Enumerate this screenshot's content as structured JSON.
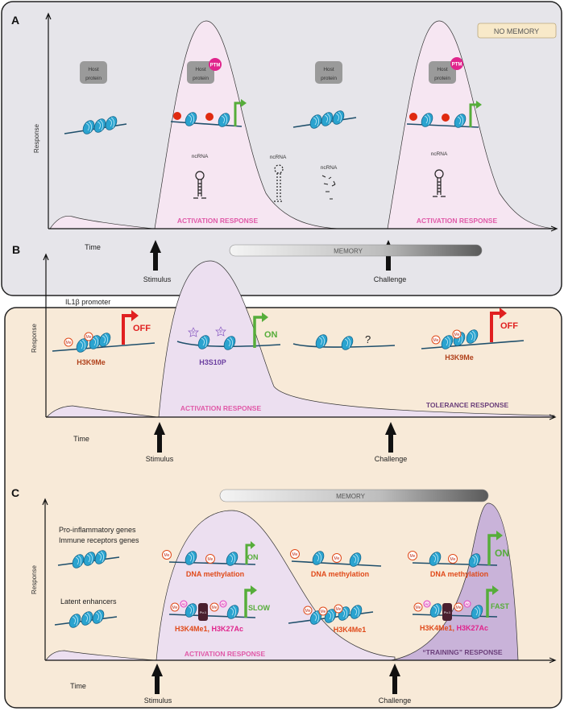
{
  "common": {
    "response_label": "Response",
    "time_label": "Time",
    "stimulus_label": "Stimulus",
    "challenge_label": "Challenge",
    "activation_label": "ACTIVATION RESPONSE",
    "me": "Me",
    "ac": "Ac",
    "p": "P",
    "pu1": "Pu.1"
  },
  "panel_a": {
    "letter": "A",
    "badge": "NO MEMORY",
    "host_protein_line1": "Host",
    "host_protein_line2": "protein",
    "ptm": "PTM",
    "ncrna": "ncRNA"
  },
  "panel_b": {
    "letter": "B",
    "memory": "MEMORY",
    "promoter": "IL1β promoter",
    "h3k9me": "H3K9Me",
    "h3s10p": "H3S10P",
    "off": "OFF",
    "on": "ON",
    "question": "?",
    "tolerance": "TOLERANCE RESPONSE"
  },
  "panel_c": {
    "letter": "C",
    "memory": "MEMORY",
    "genes_line1": "Pro-inflammatory genes",
    "genes_line2": "Immune receptors genes",
    "enhancers": "Latent enhancers",
    "dna_methylation": "DNA methylation",
    "h3k4me1": "H3K4Me1",
    "h3k27ac": "H3K27Ac",
    "comma": ", ",
    "on": "ON",
    "slow": "SLOW",
    "fast": "FAST",
    "training": "“TRAINING” RESPONSE"
  },
  "colors": {
    "panel_a_bg": "#e6e5ea",
    "panel_bc_bg": "#f8ead8",
    "response_fill": "#f6e6f2",
    "training_fill": "#c9b3d9",
    "nucleosome": "#2aa3cf",
    "on_arrow": "#56ad3a",
    "off_arrow": "#e02020",
    "ptm": "#e0248c",
    "me": "#e04a1a",
    "ac": "#e040c0",
    "pu1": "#4a1f2e"
  }
}
